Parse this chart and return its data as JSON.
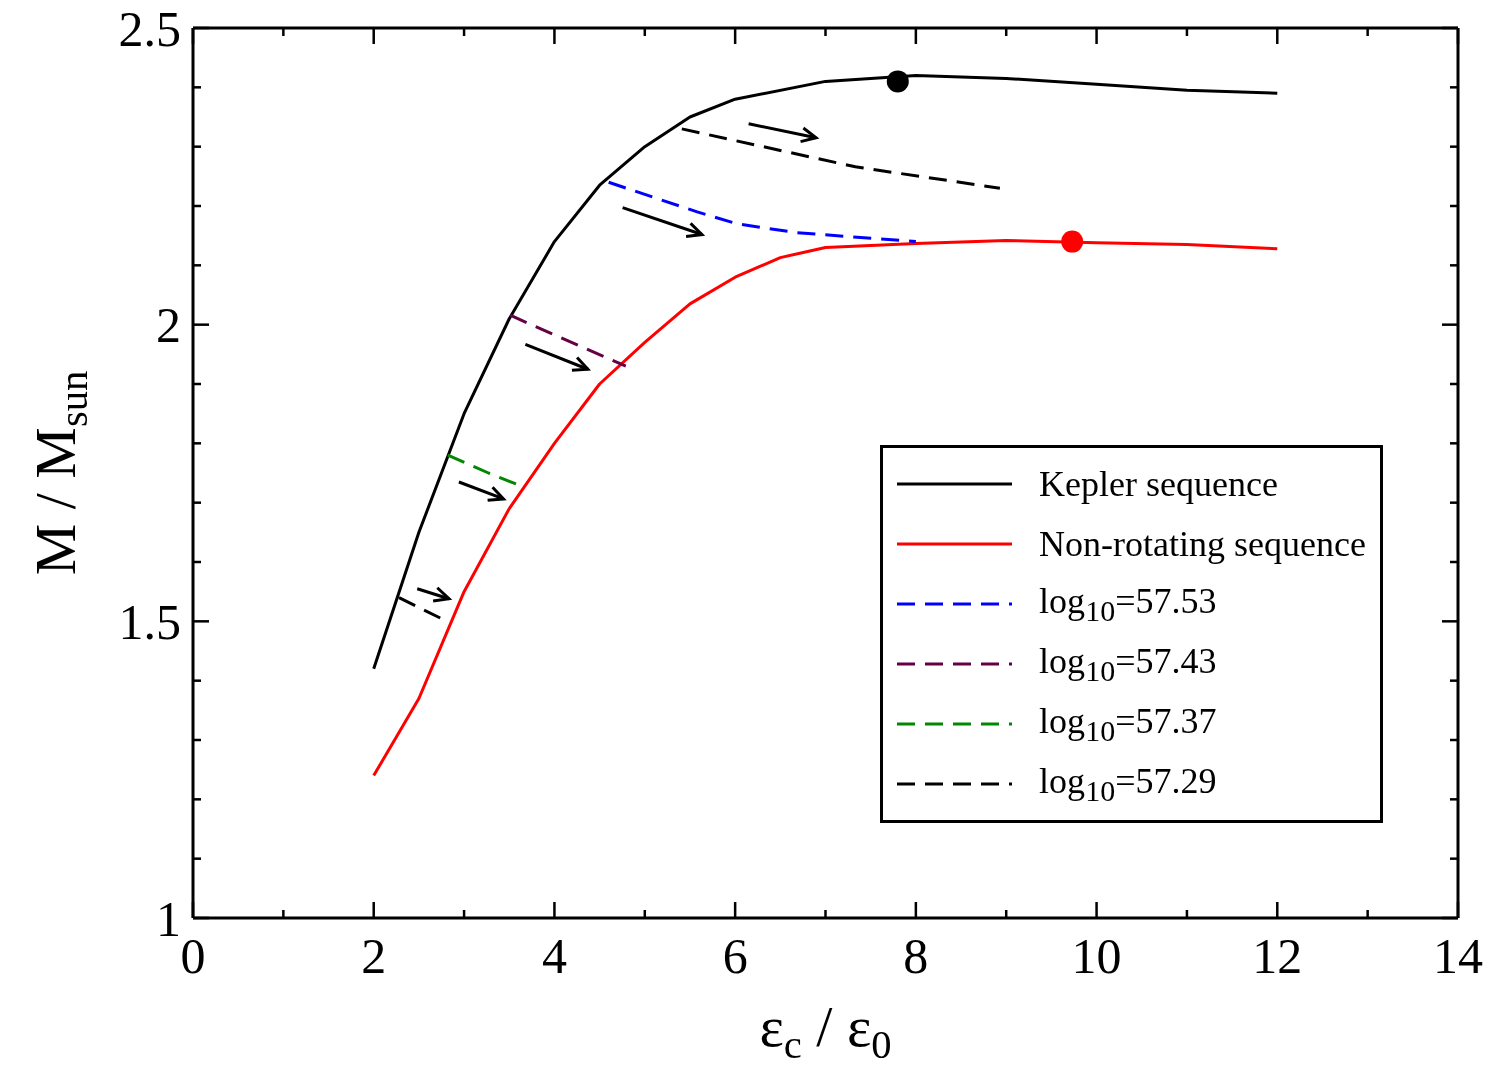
{
  "chart_data": {
    "type": "line",
    "xlabel": "ε$_{c}$ / ε$_{0}$",
    "ylabel": "M / M$_{sun}$",
    "xlim": [
      0,
      14
    ],
    "xticks": [
      0,
      {
        "value": 1,
        "label": null
      },
      2,
      {
        "value": 3,
        "label": null
      },
      4,
      {
        "value": 5,
        "label": null
      },
      6,
      {
        "value": 7,
        "label": null
      },
      8,
      {
        "value": 9,
        "label": null
      },
      10,
      {
        "value": 11,
        "label": null
      },
      12,
      {
        "value": 13,
        "label": null
      },
      14
    ],
    "ylim": [
      1,
      2.5
    ],
    "yticks": [
      1,
      {
        "value": 1.1,
        "label": null
      },
      {
        "value": 1.2,
        "label": null
      },
      {
        "value": 1.3,
        "label": null
      },
      {
        "value": 1.4,
        "label": null
      },
      1.5,
      {
        "value": 1.6,
        "label": null
      },
      {
        "value": 1.7,
        "label": null
      },
      {
        "value": 1.8,
        "label": null
      },
      {
        "value": 1.9,
        "label": null
      },
      2,
      {
        "value": 2.1,
        "label": null
      },
      {
        "value": 2.2,
        "label": null
      },
      {
        "value": 2.3,
        "label": null
      },
      {
        "value": 2.4,
        "label": null
      },
      2.5
    ],
    "legend": "bottom right",
    "marker": "none",
    "line_style": "solid",
    "series": [
      {
        "name": "Kepler sequence",
        "color": "#000000",
        "x": [
          2,
          2.5,
          3,
          3.5,
          4,
          4.5,
          5,
          5.5,
          6,
          7,
          8,
          9,
          10,
          11,
          12
        ],
        "values": [
          1.42,
          1.65,
          1.85,
          2.01,
          2.14,
          2.235,
          2.3,
          2.35,
          2.38,
          2.41,
          2.42,
          2.415,
          2.405,
          2.395,
          2.39
        ]
      },
      {
        "name": "Non-rotating sequence",
        "color": "#ff0000",
        "x": [
          2,
          2.5,
          3,
          3.5,
          4,
          4.5,
          5,
          5.5,
          6,
          6.5,
          7,
          8,
          9,
          10,
          11,
          12
        ],
        "values": [
          1.24,
          1.37,
          1.55,
          1.69,
          1.8,
          1.9,
          1.97,
          2.035,
          2.08,
          2.113,
          2.13,
          2.137,
          2.142,
          2.138,
          2.135,
          2.128
        ]
      },
      {
        "name": "log$_{10}$=57.53",
        "color": "#0000ff",
        "line_style": "dashed",
        "x": [
          4.6,
          5.58,
          6.02,
          6.68,
          8
        ],
        "values": [
          2.24,
          2.19,
          2.17,
          2.155,
          2.14
        ]
      },
      {
        "name": "log$_{10}$=57.43",
        "color": "#660044",
        "line_style": "dashed",
        "x": [
          3.51,
          4.04,
          4.79
        ],
        "values": [
          2.016,
          1.98,
          1.93
        ]
      },
      {
        "name": "log$_{10}$=57.37",
        "color": "#008800",
        "line_style": "dashed",
        "x": [
          2.82,
          3.27,
          3.6
        ],
        "values": [
          1.78,
          1.75,
          1.73
        ]
      },
      {
        "name": "log$_{10}$=57.29",
        "color": "#000000",
        "line_style": "dashed",
        "x": [
          2.28,
          2.81
        ],
        "values": [
          1.54,
          1.5
        ]
      },
      {
        "color": "#000000",
        "line_style": "dashed",
        "x": [
          5.41,
          7.33,
          8.93
        ],
        "values": [
          2.33,
          2.266,
          2.23
        ]
      },
      {
        "type": "scatter",
        "marker": "circle",
        "color": "#000000",
        "x": [
          7.8
        ],
        "values": [
          2.41
        ]
      },
      {
        "type": "scatter",
        "marker": "circle",
        "color": "#ff0000",
        "x": [
          9.73
        ],
        "values": [
          2.14
        ]
      }
    ]
  }
}
